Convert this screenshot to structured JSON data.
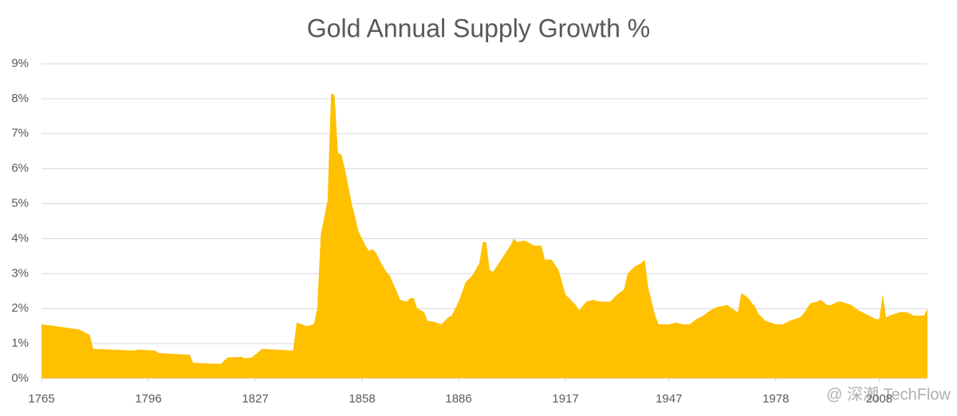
{
  "chart_data": {
    "type": "area",
    "title": "Gold Annual Supply Growth %",
    "watermark": "@ 深潮 TechFlow",
    "color": "#ffc000",
    "grid": true,
    "x": [
      1765,
      1769,
      1776,
      1779,
      1780,
      1792,
      1793,
      1798,
      1799,
      1808,
      1809,
      1817,
      1819,
      1823,
      1824,
      1826,
      1829,
      1838,
      1839,
      1842,
      1844,
      1845,
      1846,
      1848,
      1849,
      1850,
      1851,
      1852,
      1853,
      1855,
      1857,
      1859,
      1860,
      1861,
      1862,
      1863,
      1865,
      1866,
      1868,
      1869,
      1871,
      1872,
      1873,
      1874,
      1876,
      1877,
      1879,
      1881,
      1883,
      1884,
      1886,
      1888,
      1890,
      1892,
      1893,
      1894,
      1895,
      1896,
      1899,
      1901,
      1902,
      1903,
      1905,
      1907,
      1908,
      1910,
      1911,
      1913,
      1915,
      1917,
      1920,
      1921,
      1923,
      1925,
      1927,
      1930,
      1932,
      1934,
      1935,
      1937,
      1939,
      1940,
      1941,
      1943,
      1944,
      1947,
      1949,
      1951,
      1953,
      1955,
      1957,
      1959,
      1961,
      1964,
      1966,
      1967,
      1968,
      1970,
      1972,
      1973,
      1975,
      1978,
      1980,
      1982,
      1985,
      1986,
      1988,
      1990,
      1991,
      1993,
      1994,
      1996,
      1997,
      2000,
      2002,
      2004,
      2007,
      2008,
      2009,
      2010,
      2011,
      2014,
      2016,
      2018,
      2021,
      2022
    ],
    "values": [
      1.55,
      1.5,
      1.4,
      1.25,
      0.85,
      0.8,
      0.83,
      0.8,
      0.73,
      0.68,
      0.45,
      0.42,
      0.6,
      0.62,
      0.58,
      0.6,
      0.85,
      0.8,
      1.6,
      1.5,
      1.55,
      2.0,
      4.1,
      5.1,
      8.15,
      8.1,
      6.45,
      6.4,
      6.0,
      5.0,
      4.2,
      3.8,
      3.65,
      3.7,
      3.6,
      3.4,
      3.05,
      2.95,
      2.5,
      2.25,
      2.2,
      2.3,
      2.3,
      2.0,
      1.9,
      1.65,
      1.62,
      1.55,
      1.75,
      1.8,
      2.2,
      2.75,
      2.95,
      3.3,
      3.9,
      3.9,
      3.1,
      3.05,
      3.5,
      3.8,
      4.0,
      3.9,
      3.95,
      3.85,
      3.8,
      3.8,
      3.4,
      3.4,
      3.1,
      2.4,
      2.1,
      1.95,
      2.2,
      2.25,
      2.2,
      2.2,
      2.4,
      2.55,
      3.0,
      3.2,
      3.3,
      3.4,
      2.6,
      1.8,
      1.55,
      1.55,
      1.6,
      1.55,
      1.55,
      1.7,
      1.8,
      1.95,
      2.05,
      2.1,
      1.95,
      1.9,
      2.45,
      2.3,
      2.05,
      1.85,
      1.65,
      1.55,
      1.55,
      1.65,
      1.75,
      1.85,
      2.15,
      2.2,
      2.25,
      2.1,
      2.1,
      2.2,
      2.2,
      2.1,
      1.95,
      1.85,
      1.7,
      1.7,
      2.4,
      1.75,
      1.8,
      1.9,
      1.9,
      1.8,
      1.8,
      2.0
    ],
    "xlim": [
      1765,
      2022
    ],
    "xticks": [
      1765,
      1796,
      1827,
      1858,
      1886,
      1917,
      1947,
      1978,
      2008
    ],
    "ylim": [
      0,
      9
    ],
    "yticks": [
      {
        "value": 0,
        "label": "0%"
      },
      {
        "value": 1,
        "label": "1%"
      },
      {
        "value": 2,
        "label": "2%"
      },
      {
        "value": 3,
        "label": "3%"
      },
      {
        "value": 4,
        "label": "4%"
      },
      {
        "value": 5,
        "label": "5%"
      },
      {
        "value": 6,
        "label": "6%"
      },
      {
        "value": 7,
        "label": "7%"
      },
      {
        "value": 8,
        "label": "8%"
      },
      {
        "value": 9,
        "label": "9%"
      }
    ]
  }
}
